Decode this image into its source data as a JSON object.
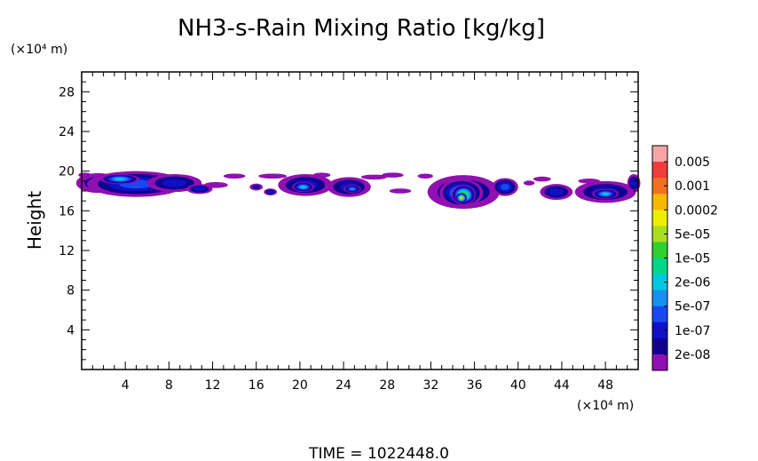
{
  "chart_data": {
    "type": "heatmap",
    "title": "NH3-s-Rain Mixing Ratio [kg/kg]",
    "ylabel": "Height",
    "y_unit": "(×10⁴ m)",
    "x_unit": "(×10⁴ m)",
    "xlim": [
      0,
      51
    ],
    "ylim": [
      0,
      30
    ],
    "x_ticks": [
      4,
      8,
      12,
      16,
      20,
      24,
      28,
      32,
      36,
      40,
      44,
      48
    ],
    "y_ticks": [
      4,
      8,
      12,
      16,
      20,
      24,
      28
    ],
    "time_label": "TIME = 1022448.0",
    "colorbar": {
      "labels": [
        "0.005",
        "0.001",
        "0.0002",
        "5e-05",
        "1e-05",
        "2e-06",
        "5e-07",
        "1e-07",
        "2e-08"
      ],
      "colors": [
        "#F7A4A4",
        "#F03C3C",
        "#F07020",
        "#F7B800",
        "#EEEE00",
        "#A8E020",
        "#30D030",
        "#00D888",
        "#00C8E0",
        "#1890F0",
        "#1848F0",
        "#1010C8",
        "#100090",
        "#9010B0"
      ]
    },
    "cells": [
      {
        "x": 1.5,
        "y": 18.8,
        "rx": 2.0,
        "ry": 1.0,
        "level": 1
      },
      {
        "x": 5.0,
        "y": 18.7,
        "rx": 4.5,
        "ry": 1.3,
        "level": 3
      },
      {
        "x": 3.5,
        "y": 19.2,
        "rx": 1.8,
        "ry": 0.5,
        "level": 5
      },
      {
        "x": 8.5,
        "y": 18.8,
        "rx": 2.5,
        "ry": 0.9,
        "level": 2
      },
      {
        "x": 10.8,
        "y": 18.2,
        "rx": 1.2,
        "ry": 0.5,
        "level": 2
      },
      {
        "x": 16.0,
        "y": 18.4,
        "rx": 0.6,
        "ry": 0.35,
        "level": 1
      },
      {
        "x": 17.3,
        "y": 17.9,
        "rx": 0.6,
        "ry": 0.35,
        "level": 2
      },
      {
        "x": 20.5,
        "y": 18.6,
        "rx": 2.5,
        "ry": 1.1,
        "level": 2
      },
      {
        "x": 20.3,
        "y": 18.4,
        "rx": 1.0,
        "ry": 0.5,
        "level": 5
      },
      {
        "x": 24.5,
        "y": 18.4,
        "rx": 2.0,
        "ry": 1.0,
        "level": 2
      },
      {
        "x": 24.8,
        "y": 18.2,
        "rx": 0.8,
        "ry": 0.4,
        "level": 4
      },
      {
        "x": 35.0,
        "y": 17.9,
        "rx": 3.3,
        "ry": 1.7,
        "level": 2
      },
      {
        "x": 34.8,
        "y": 17.8,
        "rx": 2.0,
        "ry": 1.4,
        "level": 5
      },
      {
        "x": 35.0,
        "y": 17.6,
        "rx": 1.1,
        "ry": 1.0,
        "level": 8
      },
      {
        "x": 34.8,
        "y": 17.3,
        "rx": 0.5,
        "ry": 0.5,
        "level": 10
      },
      {
        "x": 38.8,
        "y": 18.4,
        "rx": 1.2,
        "ry": 0.9,
        "level": 3
      },
      {
        "x": 43.5,
        "y": 17.9,
        "rx": 1.5,
        "ry": 0.8,
        "level": 2
      },
      {
        "x": 48.0,
        "y": 17.9,
        "rx": 2.8,
        "ry": 1.1,
        "level": 2
      },
      {
        "x": 48.0,
        "y": 17.7,
        "rx": 1.2,
        "ry": 0.5,
        "level": 5
      },
      {
        "x": 50.6,
        "y": 18.8,
        "rx": 0.6,
        "ry": 0.9,
        "level": 2
      }
    ],
    "fringe": [
      {
        "x": 0.3,
        "y": 19.6,
        "rx": 0.6,
        "ry": 0.25
      },
      {
        "x": 12.3,
        "y": 18.6,
        "rx": 1.1,
        "ry": 0.3
      },
      {
        "x": 14.0,
        "y": 19.5,
        "rx": 1.0,
        "ry": 0.25
      },
      {
        "x": 17.5,
        "y": 19.5,
        "rx": 1.3,
        "ry": 0.25
      },
      {
        "x": 22.0,
        "y": 19.6,
        "rx": 0.8,
        "ry": 0.25
      },
      {
        "x": 26.8,
        "y": 19.4,
        "rx": 1.2,
        "ry": 0.25
      },
      {
        "x": 28.5,
        "y": 19.6,
        "rx": 1.0,
        "ry": 0.25
      },
      {
        "x": 29.2,
        "y": 18.0,
        "rx": 1.0,
        "ry": 0.25
      },
      {
        "x": 31.5,
        "y": 19.5,
        "rx": 0.7,
        "ry": 0.25
      },
      {
        "x": 41.0,
        "y": 18.8,
        "rx": 0.5,
        "ry": 0.25
      },
      {
        "x": 42.2,
        "y": 19.2,
        "rx": 0.8,
        "ry": 0.25
      },
      {
        "x": 46.5,
        "y": 19.0,
        "rx": 1.0,
        "ry": 0.25
      }
    ]
  }
}
